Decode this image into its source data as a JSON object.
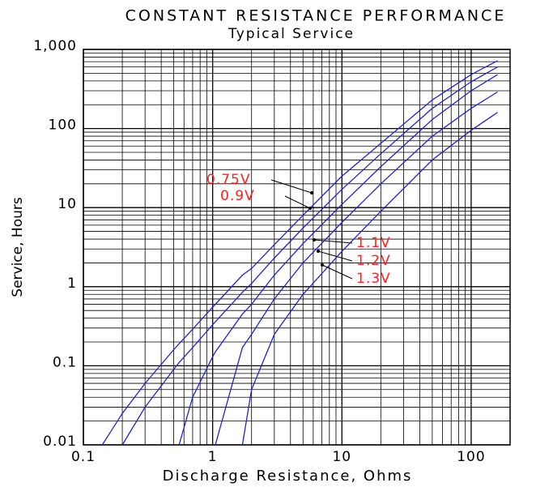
{
  "chart_data": {
    "type": "line",
    "title": "CONSTANT RESISTANCE PERFORMANCE",
    "subtitle": "Typical Service",
    "x_label": "Discharge Resistance, Ohms",
    "y_label": "Service, Hours",
    "log_x": true,
    "log_y": true,
    "grid": true,
    "label_color": "#ff2020",
    "x": [
      0.14,
      0.2,
      0.3,
      0.5,
      0.55,
      0.7,
      1,
      1.05,
      1.7,
      2,
      3,
      5,
      10,
      20,
      50,
      100,
      160
    ],
    "series": [
      {
        "name": "0.75V",
        "color": "#2323c8",
        "values": [
          0.01,
          0.025,
          0.06,
          0.16,
          0.19,
          0.29,
          0.55,
          0.6,
          1.4,
          1.7,
          3.4,
          8,
          25,
          65,
          230,
          480,
          720
        ]
      },
      {
        "name": "0.9V",
        "color": "#2323c8",
        "values": [
          null,
          0.01,
          0.03,
          0.09,
          0.11,
          0.17,
          0.33,
          0.36,
          0.85,
          1.1,
          2.3,
          5.5,
          17,
          48,
          180,
          390,
          600
        ]
      },
      {
        "name": "1.1V",
        "color": "#2323c8",
        "values": [
          null,
          null,
          null,
          null,
          0.01,
          0.04,
          0.13,
          0.15,
          0.45,
          0.6,
          1.4,
          3.5,
          11,
          33,
          130,
          300,
          480
        ]
      },
      {
        "name": "1.2V",
        "color": "#2323c8",
        "values": [
          null,
          null,
          null,
          null,
          null,
          null,
          null,
          0.01,
          0.17,
          0.25,
          0.7,
          2,
          6.5,
          20,
          80,
          180,
          290
        ]
      },
      {
        "name": "1.3V",
        "color": "#2323c8",
        "values": [
          null,
          null,
          null,
          null,
          null,
          null,
          null,
          null,
          0.01,
          0.05,
          0.25,
          0.8,
          2.8,
          9,
          40,
          95,
          160
        ]
      }
    ],
    "xlim": [
      0.1,
      200
    ],
    "xticks": [
      0.1,
      1,
      10,
      100
    ],
    "ylim": [
      0.01,
      1000
    ],
    "yticks": [
      {
        "value": 1000,
        "label": "1,000"
      },
      100,
      10,
      1,
      0.1,
      0.01
    ]
  }
}
